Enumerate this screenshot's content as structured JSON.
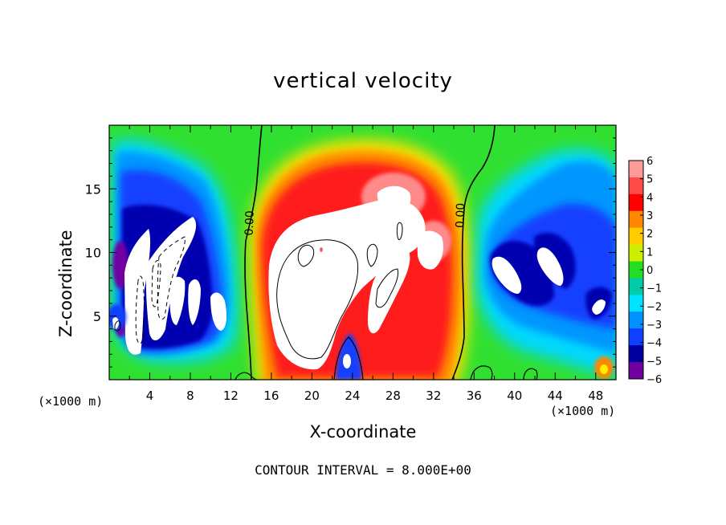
{
  "chart_data": {
    "type": "heatmap",
    "title": "vertical velocity",
    "xlabel": "X-coordinate",
    "ylabel": "Z-coordinate",
    "x_unit": "(×1000 m)",
    "xlim": [
      0,
      50
    ],
    "ylim": [
      0,
      20
    ],
    "x_ticks": [
      "4",
      "8",
      "12",
      "16",
      "20",
      "24",
      "28",
      "32",
      "36",
      "40",
      "44",
      "48"
    ],
    "y_ticks": [
      "5",
      "10",
      "15"
    ],
    "colorbar": {
      "range": [
        -6,
        6
      ],
      "labels": [
        "6",
        "5",
        "4",
        "3",
        "2",
        "1",
        "0",
        "−1",
        "−2",
        "−3",
        "−4",
        "−5",
        "−6"
      ],
      "colors": [
        "#ff9a9a",
        "#ff4a4a",
        "#ff0000",
        "#ff8800",
        "#ffcc00",
        "#ccee00",
        "#22dd22",
        "#00ccaa",
        "#00e0ff",
        "#0090ff",
        "#1040ff",
        "#0000a0",
        "#7000a0"
      ]
    },
    "contour_labels": [
      {
        "text": "0.00",
        "x": 14.2,
        "z": 12.3
      },
      {
        "text": "0.00",
        "x": 35.0,
        "z": 12.9
      }
    ],
    "contour_interval": "CONTOUR INTERVAL = 8.000E+00",
    "features": [
      {
        "region": "left downdraft",
        "x": [
          0,
          12
        ],
        "z": [
          1,
          16
        ],
        "sign": "negative"
      },
      {
        "region": "central updraft",
        "x": [
          13,
          35
        ],
        "z": [
          0,
          17
        ],
        "sign": "positive"
      },
      {
        "region": "right downdraft",
        "x": [
          35,
          50
        ],
        "z": [
          1,
          18
        ],
        "sign": "negative"
      }
    ]
  }
}
